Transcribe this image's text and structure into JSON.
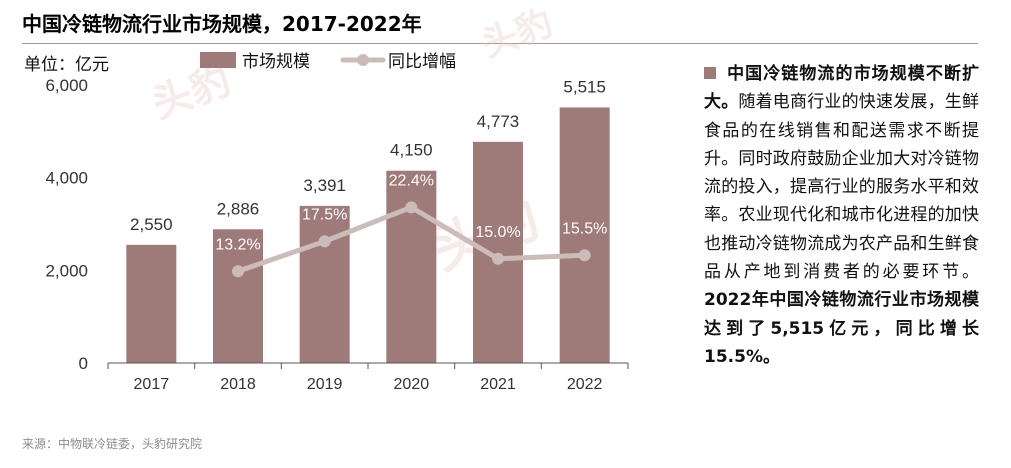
{
  "title": "中国冷链物流行业市场规模，2017-2022年",
  "unit_label": "单位：亿元",
  "legend": {
    "bar_label": "市场规模",
    "line_label": "同比增幅"
  },
  "source": "来源：中物联冷链委，头豹研究院",
  "side_text": {
    "lead_bold": "中国冷链物流的市场规模不断扩大。",
    "body": "随着电商行业的快速发展，生鲜食品的在线销售和配送需求不断提升。同时政府鼓励企业加大对冷链物流的投入，提高行业的服务水平和效率。农业现代化和城市化进程的加快也推动冷链物流成为农产品和生鲜食品从产地到消费者的必要环节。",
    "closing_bold": "2022年中国冷链物流行业市场规模达到了5,515亿元，同比增长15.5%。"
  },
  "watermark": "头豹",
  "colors": {
    "bar": "#9e7a78",
    "line": "#cbbcba",
    "axis": "#555555",
    "tick_text": "#333333"
  },
  "chart_data": {
    "type": "bar",
    "categories": [
      "2017",
      "2018",
      "2019",
      "2020",
      "2021",
      "2022"
    ],
    "series": [
      {
        "name": "市场规模",
        "type": "bar",
        "values": [
          2550,
          2886,
          3391,
          4150,
          4773,
          5515
        ],
        "labels": [
          "2,550",
          "2,886",
          "3,391",
          "4,150",
          "4,773",
          "5,515"
        ]
      },
      {
        "name": "同比增幅",
        "type": "line",
        "values": [
          null,
          13.2,
          17.5,
          22.4,
          15.0,
          15.5
        ],
        "labels": [
          "",
          "13.2%",
          "17.5%",
          "22.4%",
          "15.0%",
          "15.5%"
        ]
      }
    ],
    "yticks": [
      "0",
      "2,000",
      "4,000",
      "6,000"
    ],
    "ylim": [
      0,
      6000
    ],
    "legend_position": "top"
  }
}
